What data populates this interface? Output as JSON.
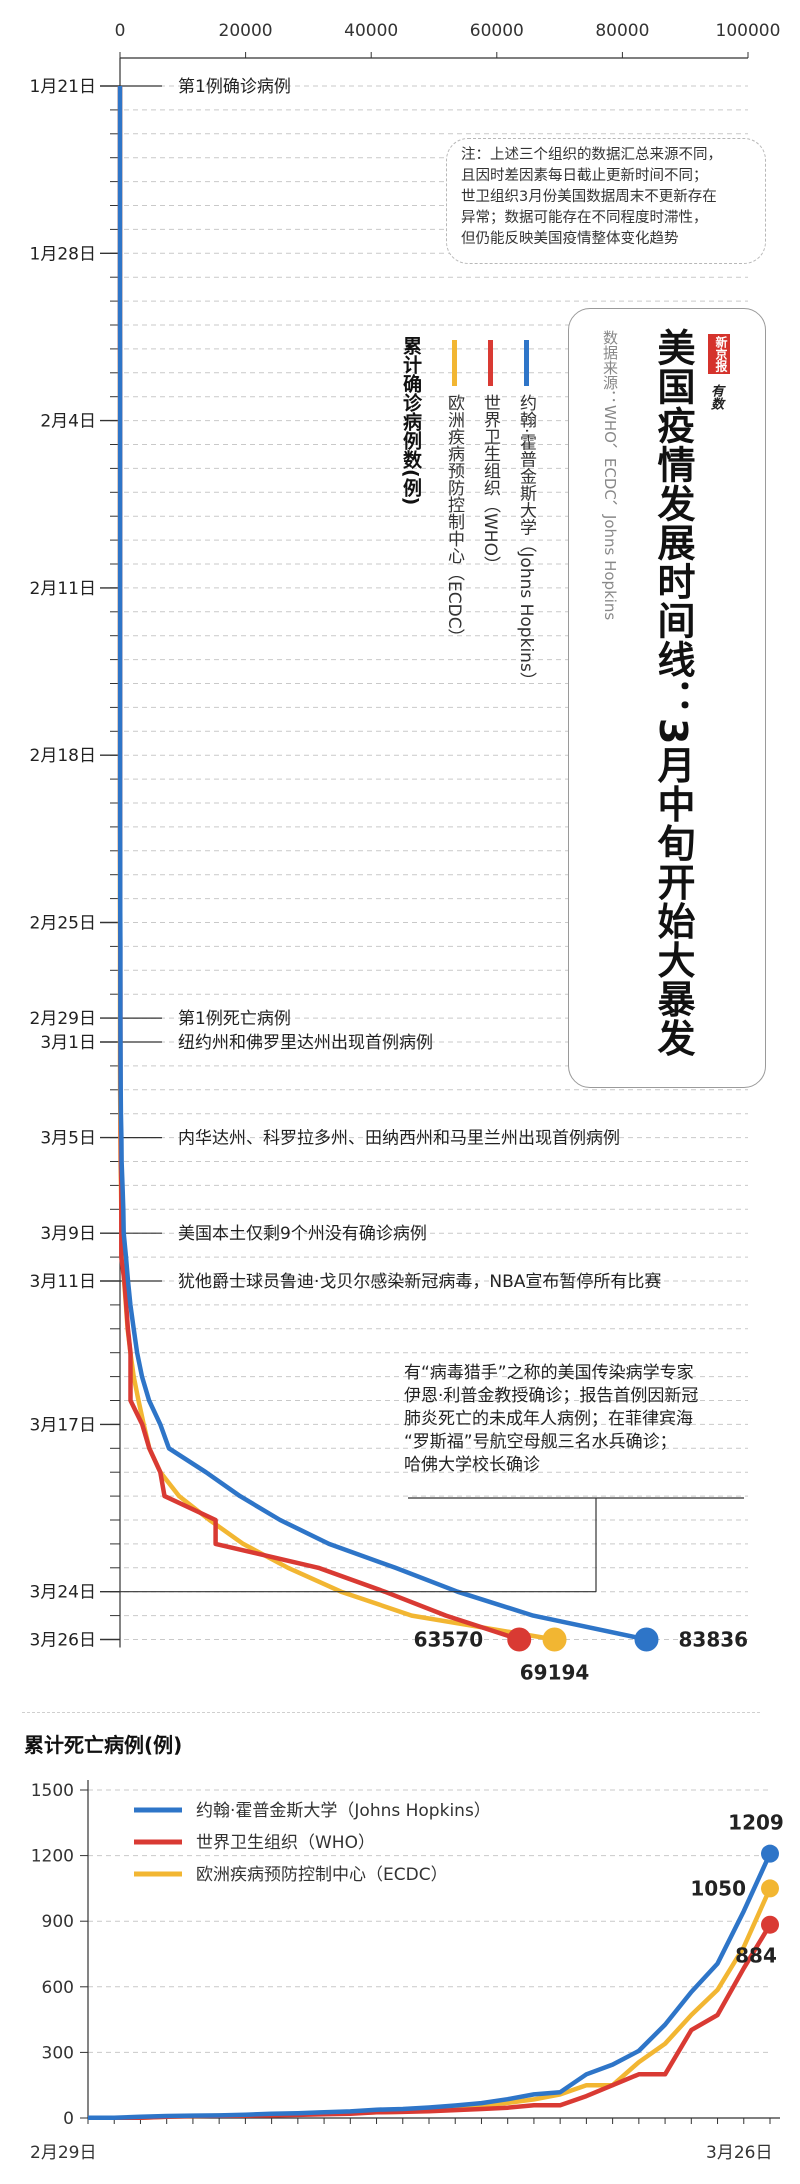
{
  "title": "美国疫情发展时间线：3月中旬开始大暴发",
  "source": "数据来源：WHO、ECDC、Johns Hopkins",
  "logo": {
    "name": "新京报",
    "brand": "有数"
  },
  "note": [
    "注：上述三个组织的数据汇总来源不同，",
    "且因时差因素每日截止更新时间不同；",
    "世卫组织3月份美国数据周末不更新存在",
    "异常；数据可能存在不同程度时滞性，",
    "但仍能反映美国疫情整体变化趋势"
  ],
  "legend_total": "累计确诊病例数(例)",
  "colors": {
    "jhu": "#2e75c8",
    "who": "#d93a33",
    "ecdc": "#f2b632",
    "grid": "#c9c9c9",
    "axis": "#333333"
  },
  "chart_data": [
    {
      "type": "line",
      "title": "累计确诊病例数(例)",
      "orientation": "vertical-time",
      "xlim": [
        0,
        100000
      ],
      "x_ticks": [
        "0",
        "20000",
        "40000",
        "60000",
        "80000",
        "100000"
      ],
      "dates": [
        "1月21日",
        "1月22日",
        "1月23日",
        "1月24日",
        "1月25日",
        "1月26日",
        "1月27日",
        "1月28日",
        "1月29日",
        "1月30日",
        "1月31日",
        "2月1日",
        "2月2日",
        "2月3日",
        "2月4日",
        "2月5日",
        "2月6日",
        "2月7日",
        "2月8日",
        "2月9日",
        "2月10日",
        "2月11日",
        "2月12日",
        "2月13日",
        "2月14日",
        "2月15日",
        "2月16日",
        "2月17日",
        "2月18日",
        "2月19日",
        "2月20日",
        "2月21日",
        "2月22日",
        "2月23日",
        "2月24日",
        "2月25日",
        "2月26日",
        "2月27日",
        "2月28日",
        "2月29日",
        "3月1日",
        "3月2日",
        "3月3日",
        "3月4日",
        "3月5日",
        "3月6日",
        "3月7日",
        "3月8日",
        "3月9日",
        "3月10日",
        "3月11日",
        "3月12日",
        "3月13日",
        "3月14日",
        "3月15日",
        "3月16日",
        "3月17日",
        "3月18日",
        "3月19日",
        "3月20日",
        "3月21日",
        "3月22日",
        "3月23日",
        "3月24日",
        "3月25日",
        "3月26日"
      ],
      "date_labels": [
        "1月21日",
        "1月28日",
        "2月4日",
        "2月11日",
        "2月18日",
        "2月25日",
        "2月29日",
        "3月1日",
        "3月5日",
        "3月9日",
        "3月11日",
        "3月17日",
        "3月24日",
        "3月26日"
      ],
      "series": [
        {
          "name": "约翰·霍普金斯大学（Johns Hopkins）",
          "key": "jhu",
          "start_index": 0,
          "values": [
            1,
            1,
            2,
            2,
            5,
            5,
            5,
            5,
            5,
            6,
            6,
            8,
            8,
            11,
            11,
            11,
            12,
            12,
            12,
            12,
            12,
            13,
            13,
            14,
            15,
            15,
            15,
            15,
            15,
            15,
            15,
            15,
            35,
            35,
            35,
            53,
            57,
            60,
            60,
            68,
            74,
            98,
            118,
            149,
            217,
            262,
            402,
            518,
            583,
            959,
            1281,
            1663,
            2179,
            2727,
            3499,
            4632,
            6421,
            7786,
            13680,
            19101,
            25493,
            33276,
            43847,
            53740,
            65778,
            83836
          ]
        },
        {
          "name": "世界卫生组织（WHO）",
          "key": "who",
          "start_index": 0,
          "values": [
            1,
            1,
            1,
            1,
            2,
            2,
            5,
            5,
            5,
            5,
            6,
            6,
            8,
            8,
            11,
            11,
            11,
            12,
            12,
            12,
            12,
            12,
            13,
            13,
            14,
            15,
            15,
            15,
            15,
            15,
            15,
            15,
            15,
            35,
            35,
            35,
            53,
            53,
            60,
            60,
            62,
            64,
            75,
            108,
            129,
            148,
            213,
            213,
            213,
            213,
            696,
            987,
            1264,
            1678,
            1678,
            1678,
            3536,
            4661,
            6421,
            7087,
            15219,
            15219,
            31573,
            42164,
            51914,
            63570
          ]
        },
        {
          "name": "欧洲疾病预防控制中心（ECDC）",
          "key": "ecdc",
          "start_index": 0,
          "values": [
            1,
            1,
            1,
            1,
            1,
            1,
            1,
            1,
            1,
            1,
            1,
            1,
            1,
            1,
            1,
            1,
            1,
            1,
            1,
            1,
            1,
            1,
            1,
            1,
            1,
            1,
            1,
            1,
            1,
            1,
            1,
            1,
            1,
            1,
            1,
            1,
            1,
            1,
            1,
            1,
            1,
            7,
            23,
            47,
            60,
            99,
            164,
            213,
            279,
            423,
            647,
            937,
            1215,
            1663,
            2174,
            2951,
            3774,
            4661,
            6427,
            9415,
            14250,
            19624,
            26747,
            35206,
            46442,
            69194
          ]
        }
      ],
      "end_labels": {
        "jhu": "83836",
        "who": "63570",
        "ecdc": "69194"
      },
      "events": [
        {
          "date_index": 0,
          "text": "第1例确诊病例"
        },
        {
          "date_index": 39,
          "text": "第1例死亡病例"
        },
        {
          "date_index": 40,
          "text": "纽约州和佛罗里达州出现首例病例"
        },
        {
          "date_index": 44,
          "text": "内华达州、科罗拉多州、田纳西州和马里兰州出现首例病例"
        },
        {
          "date_index": 48,
          "text": "美国本土仅剩9个州没有确诊病例"
        },
        {
          "date_index": 50,
          "text": "犹他爵士球员鲁迪·戈贝尔感染新冠病毒，NBA宣布暂停所有比赛"
        }
      ],
      "callout": {
        "date_index": 63,
        "lines": [
          "有“病毒猎手”之称的美国传染病学专家",
          "伊恩·利普金教授确诊；报告首例因新冠",
          "肺炎死亡的未成年人病例；在菲律宾海",
          "“罗斯福”号航空母舰三名水兵确诊；",
          "哈佛大学校长确诊"
        ]
      }
    },
    {
      "type": "line",
      "title": "累计死亡病例(例)",
      "ylim": [
        0,
        1500
      ],
      "y_ticks": [
        "0",
        "300",
        "600",
        "900",
        "1200",
        "1500"
      ],
      "x_start_label": "2月29日",
      "x_end_label": "3月26日",
      "series": [
        {
          "name": "约翰·霍普金斯大学（Johns Hopkins）",
          "key": "jhu",
          "values": [
            1,
            1,
            6,
            9,
            11,
            12,
            15,
            19,
            22,
            26,
            30,
            38,
            41,
            48,
            57,
            68,
            86,
            108,
            118,
            200,
            244,
            307,
            427,
            576,
            706,
            946,
            1209
          ]
        },
        {
          "name": "世界卫生组织（WHO）",
          "key": "who",
          "values": [
            1,
            1,
            1,
            6,
            9,
            10,
            11,
            12,
            14,
            17,
            19,
            26,
            28,
            31,
            36,
            41,
            47,
            58,
            58,
            100,
            150,
            200,
            200,
            402,
            471,
            685,
            884
          ]
        },
        {
          "name": "欧洲疾病预防控制中心（ECDC）",
          "key": "ecdc",
          "values": [
            1,
            1,
            1,
            6,
            9,
            11,
            12,
            14,
            17,
            19,
            22,
            26,
            29,
            40,
            49,
            57,
            69,
            85,
            108,
            150,
            150,
            255,
            340,
            471,
            586,
            782,
            1050
          ]
        }
      ],
      "end_labels": {
        "jhu": "1209",
        "who": "884",
        "ecdc": "1050"
      }
    }
  ]
}
